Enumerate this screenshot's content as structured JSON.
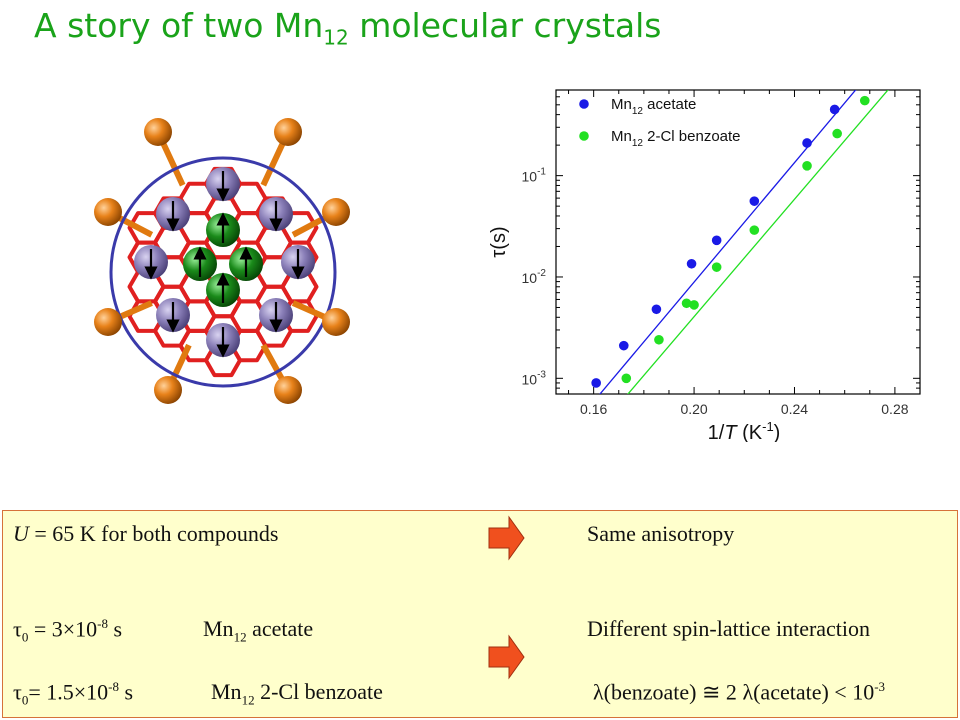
{
  "title": {
    "main": "A story of two Mn",
    "sub": "12",
    "rest": " molecular crystals"
  },
  "molecule": {
    "colors": {
      "bond": "#e02020",
      "outer_atom": "#e07a10",
      "mn_purple": "#8a7fb8",
      "mn_green": "#1a8a1a",
      "ring": "#3a3aaa",
      "arrow": "#000000"
    }
  },
  "plot": {
    "ylabel": "τ(s)",
    "xlabel_main": "1/",
    "xlabel_var": "T",
    "xlabel_unit": " (K",
    "xlabel_exp": "-1",
    "xlabel_close": ")",
    "ytick_labels": [
      {
        "base": "10",
        "exp": "-1"
      },
      {
        "base": "10",
        "exp": "-2"
      },
      {
        "base": "10",
        "exp": "-3"
      }
    ],
    "xtick_labels": [
      "0.16",
      "0.20",
      "0.24",
      "0.28"
    ],
    "legend": [
      {
        "base": "Mn",
        "sub": "12",
        "rest": " acetate",
        "color": "#1a1ae6"
      },
      {
        "base": "Mn",
        "sub": "12",
        "rest": " 2-Cl benzoate",
        "color": "#22e022"
      }
    ]
  },
  "chart_data": {
    "type": "scatter",
    "xlabel": "1/T (K-1)",
    "ylabel": "τ(s)",
    "xlim": [
      0.145,
      0.29
    ],
    "ylim": [
      0.0007,
      0.7
    ],
    "y_scale": "log",
    "grid": false,
    "legend_position": "top-left",
    "series": [
      {
        "name": "Mn12 acetate",
        "color": "#1a1ae6",
        "x": [
          0.161,
          0.172,
          0.185,
          0.199,
          0.209,
          0.224,
          0.245,
          0.256
        ],
        "y": [
          0.0009,
          0.0021,
          0.0048,
          0.0135,
          0.023,
          0.056,
          0.21,
          0.45
        ],
        "fit_line": {
          "x": [
            0.155,
            0.271
          ],
          "y": [
            0.00042,
            1.1
          ]
        }
      },
      {
        "name": "Mn12 2-Cl benzoate",
        "color": "#22e022",
        "x": [
          0.173,
          0.186,
          0.197,
          0.2,
          0.209,
          0.224,
          0.245,
          0.257,
          0.268
        ],
        "y": [
          0.001,
          0.0024,
          0.0055,
          0.0053,
          0.0125,
          0.029,
          0.125,
          0.26,
          0.55
        ],
        "fit_line": {
          "x": [
            0.166,
            0.284
          ],
          "y": [
            0.00042,
            1.1
          ]
        }
      }
    ]
  },
  "info": {
    "row1": {
      "u_var": "U",
      "u_text": " = 65 K for both compounds",
      "right": "Same anisotropy"
    },
    "row2": {
      "tau": "τ",
      "tau_sub": "0",
      "eq": " = 3×10",
      "exp": "-8",
      "unit": " s",
      "compound": "Mn",
      "compound_sub": "12",
      "compound_rest": " acetate",
      "right": "Different spin-lattice interaction"
    },
    "row3": {
      "tau": "τ",
      "tau_sub": "0",
      "eq": "= 1.5×10",
      "exp": "-8",
      "unit": " s",
      "compound": "Mn",
      "compound_sub": "12",
      "compound_rest": " 2-Cl benzoate",
      "lambda1": "λ",
      "mid1": "(benzoate) ≅ 2 ",
      "lambda2": "λ",
      "mid2": "(acetate) < 10",
      "exp2": "-3"
    },
    "arrow_color": "#f0501e"
  }
}
